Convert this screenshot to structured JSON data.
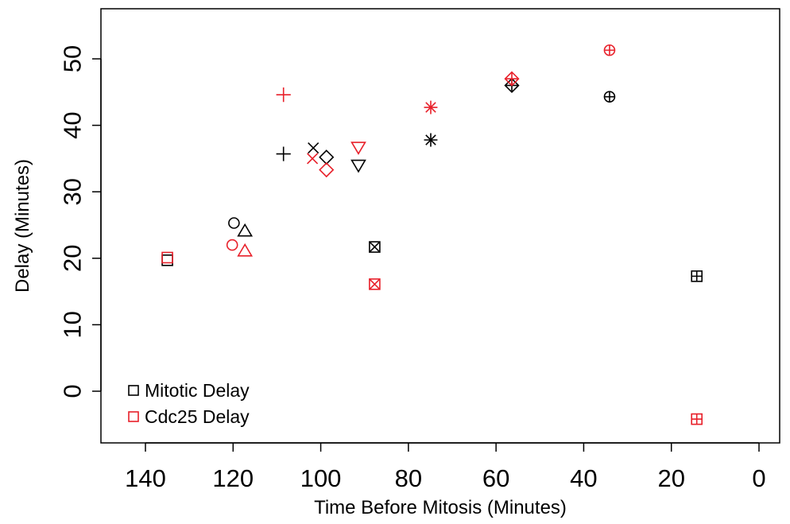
{
  "chart_data": {
    "type": "scatter",
    "title": "",
    "xlabel": "Time Before Mitosis (Minutes)",
    "ylabel": "Delay (Minutes)",
    "xlim": [
      140,
      0
    ],
    "ylim": [
      -7.5,
      57.5
    ],
    "x_reversed": true,
    "x_ticks": [
      140,
      120,
      100,
      80,
      60,
      40,
      20,
      0
    ],
    "y_ticks": [
      0,
      10,
      20,
      30,
      40,
      50
    ],
    "grid": false,
    "legend_position": "bottom-left",
    "series": [
      {
        "name": "Mitotic Delay",
        "color": "#000000",
        "legend_marker": "square",
        "points": [
          {
            "x": 135,
            "y": 19.7,
            "marker": "square"
          },
          {
            "x": 119.8,
            "y": 25.3,
            "marker": "circle"
          },
          {
            "x": 117.3,
            "y": 24.1,
            "marker": "triangle-up"
          },
          {
            "x": 108.5,
            "y": 35.7,
            "marker": "plus"
          },
          {
            "x": 101.7,
            "y": 36.6,
            "marker": "cross"
          },
          {
            "x": 98.7,
            "y": 35.2,
            "marker": "diamond"
          },
          {
            "x": 91.4,
            "y": 34.0,
            "marker": "triangle-down"
          },
          {
            "x": 87.7,
            "y": 21.7,
            "marker": "square-cross"
          },
          {
            "x": 74.9,
            "y": 37.8,
            "marker": "asterisk"
          },
          {
            "x": 56.4,
            "y": 46.0,
            "marker": "diamond-plus"
          },
          {
            "x": 34.1,
            "y": 44.3,
            "marker": "circle-plus"
          },
          {
            "x": 14.2,
            "y": 17.3,
            "marker": "square-plus"
          }
        ]
      },
      {
        "name": "Cdc25 Delay",
        "color": "#e8202a",
        "legend_marker": "square",
        "points": [
          {
            "x": 135,
            "y": 20.1,
            "marker": "square"
          },
          {
            "x": 120.2,
            "y": 22.0,
            "marker": "circle"
          },
          {
            "x": 117.3,
            "y": 21.1,
            "marker": "triangle-up"
          },
          {
            "x": 108.5,
            "y": 44.6,
            "marker": "plus"
          },
          {
            "x": 101.9,
            "y": 35.0,
            "marker": "cross"
          },
          {
            "x": 98.7,
            "y": 33.3,
            "marker": "diamond"
          },
          {
            "x": 91.4,
            "y": 36.7,
            "marker": "triangle-down"
          },
          {
            "x": 87.7,
            "y": 16.1,
            "marker": "square-cross"
          },
          {
            "x": 74.9,
            "y": 42.7,
            "marker": "asterisk"
          },
          {
            "x": 56.4,
            "y": 47.0,
            "marker": "diamond-plus"
          },
          {
            "x": 34.1,
            "y": 51.3,
            "marker": "circle-plus"
          },
          {
            "x": 14.2,
            "y": -4.2,
            "marker": "square-plus"
          }
        ]
      }
    ]
  }
}
